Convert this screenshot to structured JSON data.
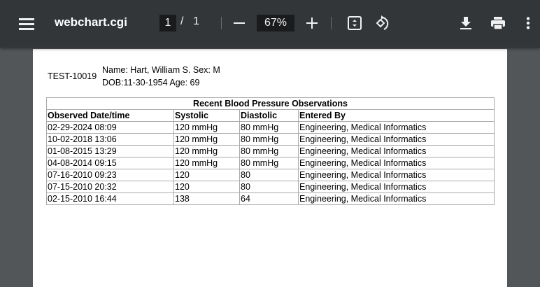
{
  "toolbar": {
    "title": "webchart.cgi",
    "current_page": "1",
    "page_separator": "/",
    "total_pages": "1",
    "zoom": "67%"
  },
  "patient": {
    "id": "TEST-10019",
    "name_line": "Name: Hart, William S. Sex: M",
    "dob_line": "DOB:11-30-1954 Age: 69"
  },
  "table": {
    "title": "Recent Blood Pressure Observations",
    "headers": [
      "Observed Date/time",
      "Systolic",
      "Diastolic",
      "Entered By"
    ],
    "rows": [
      [
        "02-29-2024 08:09",
        "120 mmHg",
        "80 mmHg",
        "Engineering, Medical Informatics"
      ],
      [
        "10-02-2018 13:06",
        "120 mmHg",
        "80 mmHg",
        "Engineering, Medical Informatics"
      ],
      [
        "01-08-2015 13:29",
        "120 mmHg",
        "80 mmHg",
        "Engineering, Medical Informatics"
      ],
      [
        "04-08-2014 09:15",
        "120 mmHg",
        "80 mmHg",
        "Engineering, Medical Informatics"
      ],
      [
        "07-16-2010 09:23",
        "120",
        "80",
        "Engineering, Medical Informatics"
      ],
      [
        "07-15-2010 20:32",
        "120",
        "80",
        "Engineering, Medical Informatics"
      ],
      [
        "02-15-2010 16:44",
        "138",
        "64",
        "Engineering, Medical Informatics"
      ]
    ]
  }
}
